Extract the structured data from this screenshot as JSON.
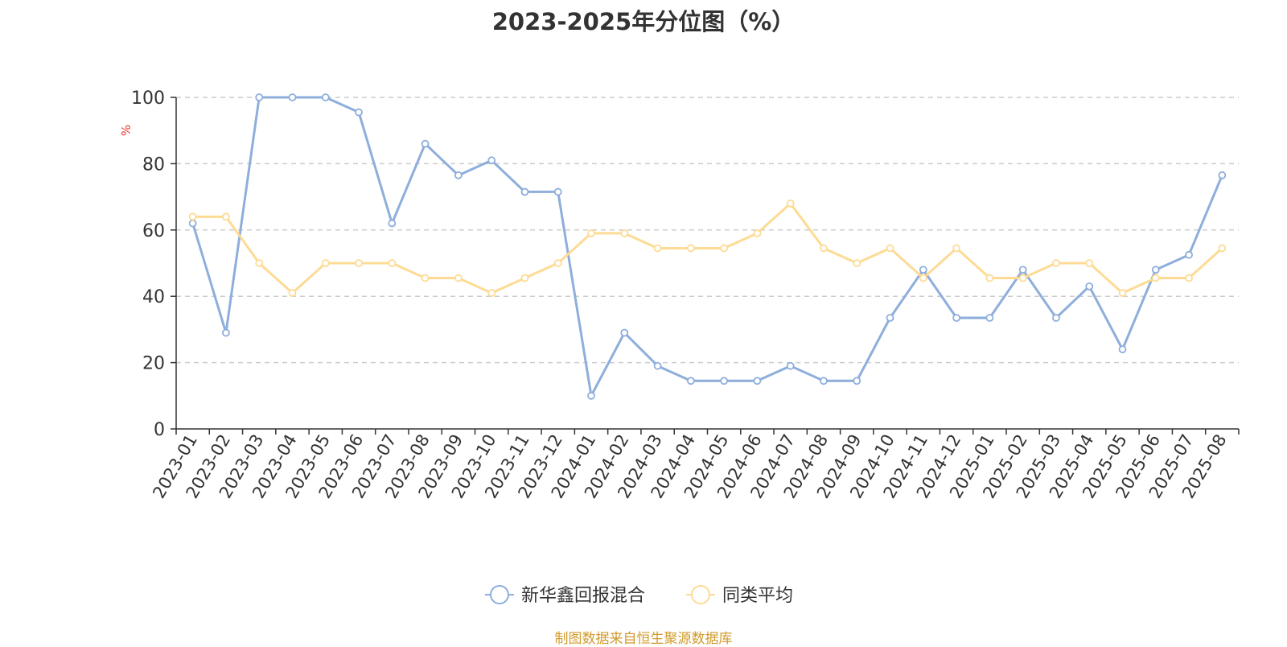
{
  "title": "2023-2025年分位图（%）",
  "source_note": "制图数据来自恒生聚源数据库",
  "colors": {
    "series_fund": "#8eaedb",
    "series_avg": "#fddb94",
    "ylabel": "#e8312c",
    "source_note": "#d19b2d",
    "grid": "#cccccc",
    "axis": "#333333"
  },
  "chart_data": {
    "type": "line",
    "title": "2023-2025年分位图（%）",
    "xlabel": "",
    "ylabel": "%",
    "ylim": [
      0,
      100
    ],
    "yticks": [
      0,
      20,
      40,
      60,
      80,
      100
    ],
    "grid": true,
    "legend_position": "bottom-center",
    "x": [
      "2023-01",
      "2023-02",
      "2023-03",
      "2023-04",
      "2023-05",
      "2023-06",
      "2023-07",
      "2023-08",
      "2023-09",
      "2023-10",
      "2023-11",
      "2023-12",
      "2024-01",
      "2024-02",
      "2024-03",
      "2024-04",
      "2024-05",
      "2024-06",
      "2024-07",
      "2024-08",
      "2024-09",
      "2024-10",
      "2024-11",
      "2024-12",
      "2025-01",
      "2025-02",
      "2025-03",
      "2025-04",
      "2025-05",
      "2025-06",
      "2025-07",
      "2025-08"
    ],
    "series": [
      {
        "name": "新华鑫回报混合",
        "color": "#8eaedb",
        "values": [
          62,
          29,
          100,
          100,
          100,
          95.5,
          62,
          86,
          76.5,
          81,
          71.5,
          71.5,
          10,
          29,
          19,
          14.5,
          14.5,
          14.5,
          19,
          14.5,
          14.5,
          33.5,
          48,
          33.5,
          33.5,
          48,
          33.5,
          43,
          24,
          48,
          52.5,
          76.5
        ]
      },
      {
        "name": "同类平均",
        "color": "#fddb94",
        "values": [
          64,
          64,
          50,
          41,
          50,
          50,
          50,
          45.5,
          45.5,
          41,
          45.5,
          50,
          59,
          59,
          54.5,
          54.5,
          54.5,
          59,
          68,
          54.5,
          50,
          54.5,
          45.5,
          54.5,
          45.5,
          45.5,
          50,
          50,
          41,
          45.5,
          45.5,
          54.5
        ]
      }
    ]
  }
}
